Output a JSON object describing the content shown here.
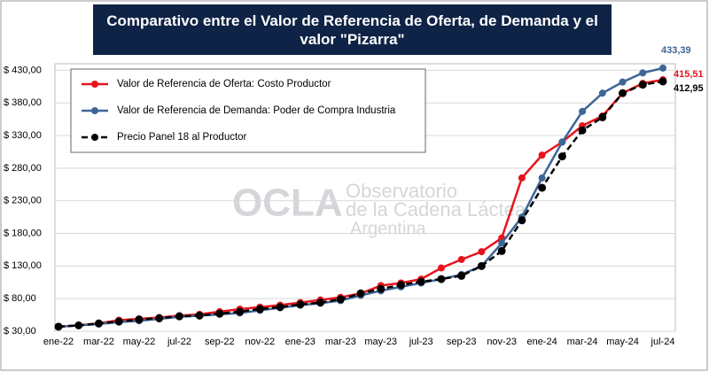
{
  "chart_data": {
    "type": "line",
    "title": "Comparativo entre el Valor de Referencia de Oferta, de Demanda y el valor \"Pizarra\"",
    "watermark": [
      "OCLA",
      "Observatorio",
      "de la Cadena Láctea",
      "Argentina"
    ],
    "categories": [
      "ene-22",
      null,
      "mar-22",
      null,
      "may-22",
      null,
      "jul-22",
      null,
      "sep-22",
      null,
      "nov-22",
      null,
      "ene-23",
      null,
      "mar-23",
      null,
      "may-23",
      null,
      "jul-23",
      null,
      "sep-23",
      null,
      "nov-23",
      null,
      "ene-24",
      null,
      "mar-24",
      null,
      "may-24",
      null,
      "jul-24"
    ],
    "series": [
      {
        "name": "Valor de Referencia de Oferta: Costo Productor",
        "color": "#e8141c",
        "dashed": false,
        "values": [
          37,
          39,
          42,
          47,
          49,
          51,
          54,
          56,
          60,
          64,
          67,
          70,
          74,
          78,
          82,
          88,
          100,
          104,
          110,
          127,
          140,
          152,
          173,
          265,
          300,
          320,
          345,
          360,
          395,
          410,
          415.51
        ],
        "value_labels": [
          null,
          null,
          null,
          null,
          null,
          null,
          null,
          null,
          null,
          null,
          null,
          null,
          null,
          null,
          null,
          null,
          null,
          null,
          null,
          null,
          null,
          null,
          null,
          null,
          null,
          null,
          null,
          null,
          null,
          null,
          "415,51"
        ]
      },
      {
        "name": "Valor de Referencia de Demanda: Poder de Compra Industria",
        "color": "#3e6597",
        "dashed": false,
        "values": [
          37,
          39,
          41,
          44,
          46,
          49,
          52,
          54,
          56,
          58,
          62,
          66,
          70,
          73,
          77,
          85,
          92,
          98,
          104,
          110,
          117,
          130,
          165,
          205,
          265,
          320,
          367,
          395,
          412,
          426,
          433.39
        ],
        "value_labels": [
          null,
          null,
          null,
          null,
          null,
          null,
          null,
          null,
          null,
          null,
          null,
          null,
          null,
          null,
          null,
          null,
          null,
          null,
          null,
          null,
          null,
          null,
          null,
          null,
          null,
          null,
          null,
          null,
          null,
          null,
          "433,39"
        ]
      },
      {
        "name": "Precio Panel 18 al Productor",
        "color": "#000000",
        "dashed": true,
        "values": [
          37,
          39,
          42,
          45,
          48,
          50,
          53,
          54,
          57,
          60,
          64,
          67,
          71,
          74,
          79,
          88,
          95,
          101,
          106,
          110,
          115,
          130,
          153,
          200,
          250,
          298,
          338,
          358,
          395,
          408,
          412.95
        ],
        "value_labels": [
          null,
          null,
          null,
          null,
          null,
          null,
          null,
          null,
          null,
          null,
          null,
          null,
          null,
          null,
          null,
          null,
          null,
          null,
          null,
          null,
          null,
          null,
          null,
          null,
          null,
          null,
          null,
          null,
          null,
          null,
          "412,95"
        ]
      }
    ],
    "ylim": [
      30,
      440
    ],
    "yticks": [
      {
        "value": 30,
        "label": "$ 30,00"
      },
      {
        "value": 80,
        "label": "$ 80,00"
      },
      {
        "value": 130,
        "label": "$ 130,00"
      },
      {
        "value": 180,
        "label": "$ 180,00"
      },
      {
        "value": 230,
        "label": "$ 230,00"
      },
      {
        "value": 280,
        "label": "$ 280,00"
      },
      {
        "value": 330,
        "label": "$ 330,00"
      },
      {
        "value": 380,
        "label": "$ 380,00"
      },
      {
        "value": 430,
        "label": "$ 430,00"
      }
    ],
    "grid": true,
    "legend": "top-left"
  }
}
